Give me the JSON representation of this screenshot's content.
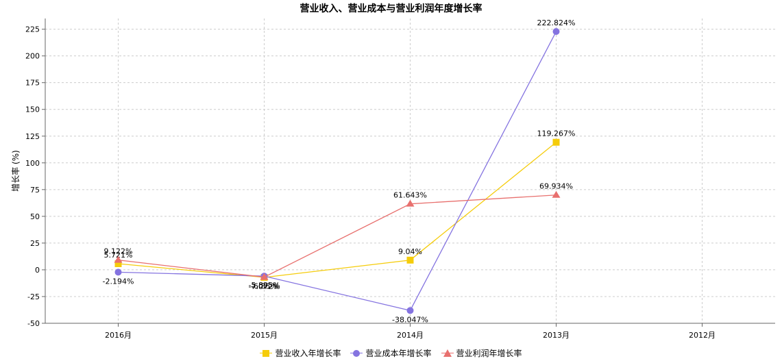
{
  "chart_data": {
    "type": "line",
    "title": "营业收入、营业成本与营业利润年度增长率",
    "ylabel": "增长率 (%)",
    "xlabel": "",
    "categories": [
      "2016月",
      "2015月",
      "2014月",
      "2013月",
      "2012月"
    ],
    "ylim": [
      -50,
      235
    ],
    "yticks": [
      -50,
      -25,
      0,
      25,
      50,
      75,
      100,
      125,
      150,
      175,
      200,
      225
    ],
    "grid": true,
    "legend_position": "bottom",
    "series": [
      {
        "name": "营业收入年增长率",
        "color": "#f5cc0a",
        "marker": "square",
        "values": [
          5.721,
          -7.072,
          9.04,
          119.267,
          null
        ],
        "labels": [
          "5.721%",
          "-7.072%",
          "9.04%",
          "119.267%",
          ""
        ]
      },
      {
        "name": "营业成本年增长率",
        "color": "#8473e0",
        "marker": "circle",
        "values": [
          -2.194,
          -5.895,
          -38.047,
          222.824,
          null
        ],
        "labels": [
          "-2.194%",
          "-5.895%",
          "-38.047%",
          "222.824%",
          ""
        ]
      },
      {
        "name": "营业利润年增长率",
        "color": "#e8706e",
        "marker": "triangle",
        "values": [
          9.122,
          -6.85,
          61.643,
          69.934,
          null
        ],
        "labels": [
          "9.122%",
          "-6.85%",
          "61.643%",
          "69.934%",
          ""
        ]
      }
    ]
  }
}
